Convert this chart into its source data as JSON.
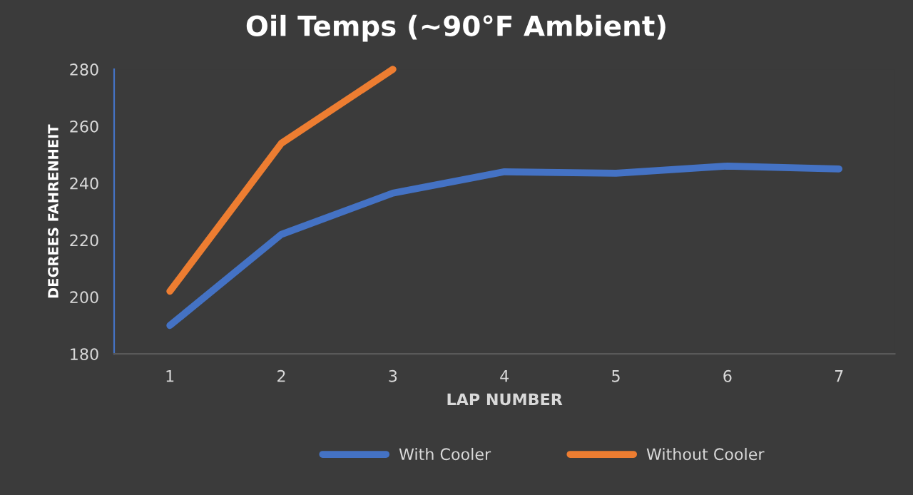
{
  "chart_data": {
    "type": "line",
    "title": "Oil Temps (~90°F Ambient)",
    "xlabel": "LAP NUMBER",
    "ylabel": "DEGREES FAHRENHEIT",
    "categories": [
      "1",
      "2",
      "3",
      "4",
      "5",
      "6",
      "7"
    ],
    "series": [
      {
        "name": "With Cooler",
        "color": "#4472c4",
        "values": [
          190,
          222,
          236.5,
          244,
          243.5,
          246,
          245
        ]
      },
      {
        "name": "Without Cooler",
        "color": "#ed7d31",
        "values": [
          202,
          254,
          280,
          null,
          null,
          null,
          null
        ]
      }
    ],
    "ylim": [
      180,
      280
    ],
    "yticks": [
      180,
      200,
      220,
      240,
      260,
      280
    ],
    "grid": false,
    "legend": "bottom",
    "marker": "none",
    "line_style": "solid"
  }
}
